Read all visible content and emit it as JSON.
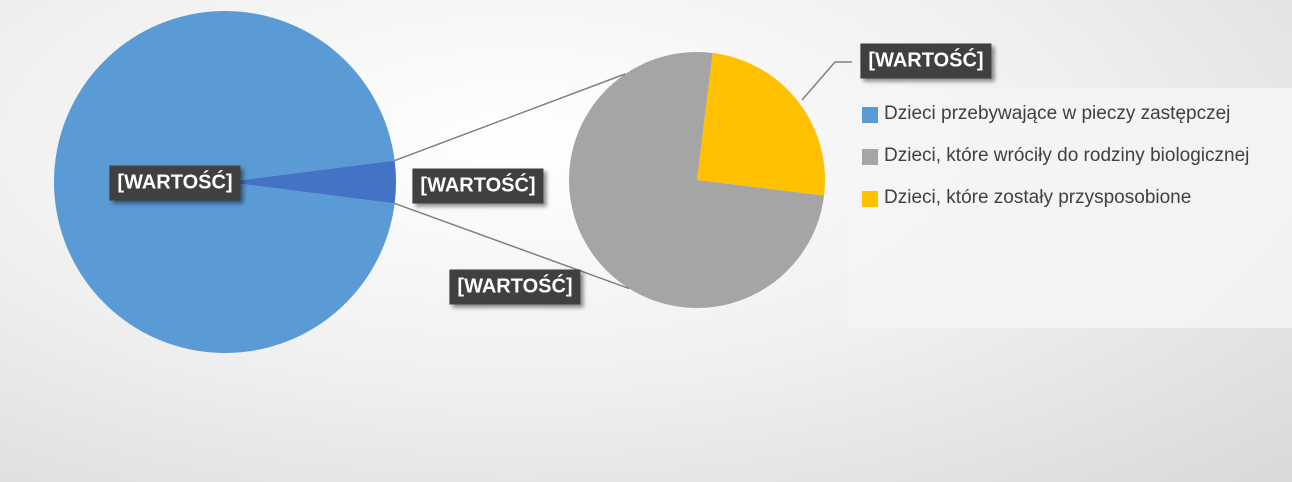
{
  "chart_data": {
    "type": "pie-of-pie",
    "categories": [
      "Dzieci przebywające w pieczy zastępczej",
      "Dzieci, które wróciły do rodziny biologicznej",
      "Dzieci, które zostały przysposobione"
    ],
    "values": [
      96,
      3,
      1
    ],
    "value_labels": [
      "[WARTOŚĆ]",
      "[WARTOŚĆ]",
      "[WARTOŚĆ]"
    ],
    "other_label": "[WARTOŚĆ]",
    "colors": [
      "#5b9bd5",
      "#a5a5a5",
      "#ffc000"
    ],
    "other_color": "#4472c4",
    "legend": "right"
  }
}
